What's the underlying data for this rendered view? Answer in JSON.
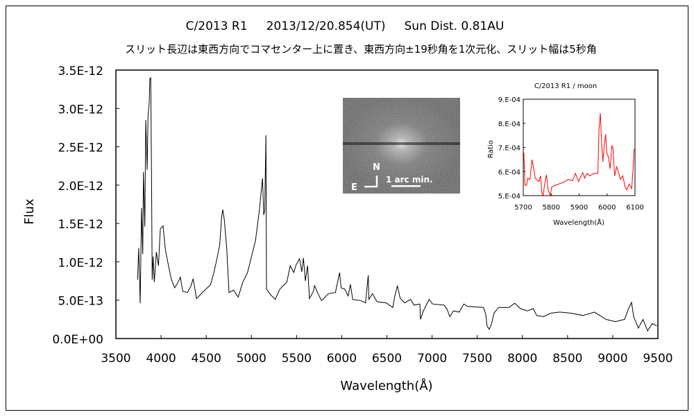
{
  "chart_data": [
    {
      "type": "line",
      "title": "C/2013 R1     2013/12/20.854(UT)     Sun Dist. 0.81AU",
      "subtitle": "スリット長辺は東西方向でコマセンター上に置き、東西方向±19秒角を1次元化、スリット幅は5秒角",
      "xlabel": "Wavelength(Å)",
      "ylabel": "Flux",
      "xlim": [
        3500,
        9500
      ],
      "ylim": [
        0,
        3.5e-12
      ],
      "x_ticks": [
        "3500",
        "4000",
        "4500",
        "5000",
        "5500",
        "6000",
        "6500",
        "7000",
        "7500",
        "8000",
        "8500",
        "9000",
        "9500"
      ],
      "y_ticks": [
        "0.0E+00",
        "5.0E-13",
        "1.0E-12",
        "1.5E-12",
        "2.0E-12",
        "2.5E-12",
        "3.0E-12",
        "3.5E-12"
      ],
      "grid": false,
      "series": [
        {
          "name": "C/2013 R1 spectrum",
          "color": "#000000",
          "y_unit_scale": 1e-13,
          "points": [
            [
              3740,
              7.66
            ],
            [
              3753,
              11.8
            ],
            [
              3769,
              4.6
            ],
            [
              3784,
              17
            ],
            [
              3797,
              11
            ],
            [
              3805,
              21.7
            ],
            [
              3820,
              14.6
            ],
            [
              3830,
              28.5
            ],
            [
              3846,
              22
            ],
            [
              3856,
              29
            ],
            [
              3869,
              30.7
            ],
            [
              3876,
              33.9
            ],
            [
              3886,
              34
            ],
            [
              3894,
              21.8
            ],
            [
              3902,
              7.7
            ],
            [
              3912,
              10.7
            ],
            [
              3925,
              7.35
            ],
            [
              3948,
              11.3
            ],
            [
              3971,
              9.5
            ],
            [
              3992,
              14.3
            ],
            [
              4022,
              14.7
            ],
            [
              4048,
              11.6
            ],
            [
              4074,
              10
            ],
            [
              4112,
              7.8
            ],
            [
              4150,
              6.6
            ],
            [
              4189,
              7.35
            ],
            [
              4214,
              8
            ],
            [
              4240,
              6.15
            ],
            [
              4291,
              6
            ],
            [
              4329,
              6.8
            ],
            [
              4355,
              7.8
            ],
            [
              4393,
              5.2
            ],
            [
              4470,
              6.15
            ],
            [
              4547,
              7
            ],
            [
              4585,
              8.6
            ],
            [
              4624,
              10.7
            ],
            [
              4649,
              12.2
            ],
            [
              4670,
              15.8
            ],
            [
              4683,
              16.8
            ],
            [
              4700,
              15.5
            ],
            [
              4726,
              11.9
            ],
            [
              4752,
              6
            ],
            [
              4803,
              6.3
            ],
            [
              4854,
              5.4
            ],
            [
              4905,
              7.35
            ],
            [
              4957,
              8.6
            ],
            [
              5008,
              11
            ],
            [
              5046,
              12.8
            ],
            [
              5085,
              16.4
            ],
            [
              5123,
              20.9
            ],
            [
              5136,
              16.1
            ],
            [
              5148,
              16.7
            ],
            [
              5156,
              23.3
            ],
            [
              5161,
              26.5
            ],
            [
              5167,
              6.45
            ],
            [
              5213,
              5.7
            ],
            [
              5264,
              5.1
            ],
            [
              5315,
              6.45
            ],
            [
              5392,
              7.35
            ],
            [
              5430,
              9.5
            ],
            [
              5469,
              8.6
            ],
            [
              5494,
              9.6
            ],
            [
              5533,
              10.4
            ],
            [
              5558,
              8.7
            ],
            [
              5576,
              10.5
            ],
            [
              5597,
              7.5
            ],
            [
              5622,
              9.5
            ],
            [
              5643,
              5.2
            ],
            [
              5686,
              6.15
            ],
            [
              5699,
              6.9
            ],
            [
              5737,
              5.85
            ],
            [
              5776,
              4.95
            ],
            [
              5853,
              5.85
            ],
            [
              5930,
              6
            ],
            [
              5976,
              8.6
            ],
            [
              5994,
              6.6
            ],
            [
              6033,
              6.45
            ],
            [
              6071,
              5.55
            ],
            [
              6096,
              7.05
            ],
            [
              6121,
              5.1
            ],
            [
              6211,
              4.95
            ],
            [
              6263,
              4.65
            ],
            [
              6293,
              8.25
            ],
            [
              6301,
              5.1
            ],
            [
              6340,
              5.85
            ],
            [
              6390,
              4.8
            ],
            [
              6493,
              4.65
            ],
            [
              6565,
              4.05
            ],
            [
              6583,
              5.25
            ],
            [
              6616,
              6.9
            ],
            [
              6647,
              5.25
            ],
            [
              6698,
              4.65
            ],
            [
              6762,
              5.1
            ],
            [
              6801,
              4.35
            ],
            [
              6865,
              4.5
            ],
            [
              6872,
              2.5
            ],
            [
              6903,
              3.6
            ],
            [
              6967,
              5.1
            ],
            [
              7005,
              4.5
            ],
            [
              7133,
              4.35
            ],
            [
              7164,
              3.9
            ],
            [
              7197,
              2.85
            ],
            [
              7236,
              3.6
            ],
            [
              7300,
              3.45
            ],
            [
              7351,
              4.5
            ],
            [
              7390,
              4.2
            ],
            [
              7569,
              4.05
            ],
            [
              7595,
              3.15
            ],
            [
              7608,
              1.65
            ],
            [
              7633,
              1.2
            ],
            [
              7659,
              1.95
            ],
            [
              7685,
              3.3
            ],
            [
              7736,
              4.05
            ],
            [
              7851,
              4.05
            ],
            [
              7915,
              4.6
            ],
            [
              7979,
              3.9
            ],
            [
              8056,
              3.6
            ],
            [
              8120,
              3.9
            ],
            [
              8158,
              3
            ],
            [
              8235,
              2.85
            ],
            [
              8312,
              3.3
            ],
            [
              8414,
              3.45
            ],
            [
              8542,
              3.3
            ],
            [
              8670,
              3
            ],
            [
              8798,
              3.45
            ],
            [
              8926,
              2.5
            ],
            [
              9029,
              2.2
            ],
            [
              9131,
              2.5
            ],
            [
              9170,
              3.75
            ],
            [
              9208,
              4.7
            ],
            [
              9232,
              2.85
            ],
            [
              9283,
              1.35
            ],
            [
              9334,
              2.5
            ],
            [
              9386,
              1.0
            ],
            [
              9437,
              1.95
            ],
            [
              9488,
              1.65
            ]
          ]
        }
      ]
    },
    {
      "type": "line",
      "title": "C/2013 R1 / moon",
      "xlabel": "Wavelength(Å)",
      "ylabel": "Ratio",
      "xlim": [
        5700,
        6100
      ],
      "ylim": [
        0.0005,
        0.0009
      ],
      "x_ticks": [
        "5700",
        "5800",
        "5900",
        "6000",
        "6100"
      ],
      "y_ticks": [
        "5.E-04",
        "6.E-04",
        "7.E-04",
        "8.E-04",
        "9.E-04"
      ],
      "series": [
        {
          "name": "ratio",
          "color": "#ff0000",
          "y_unit_scale": 0.0001,
          "points": [
            [
              5702,
              6.78
            ],
            [
              5706,
              5.43
            ],
            [
              5712,
              5.43
            ],
            [
              5716,
              5.72
            ],
            [
              5724,
              5.67
            ],
            [
              5731,
              6.49
            ],
            [
              5735,
              6.25
            ],
            [
              5743,
              5.72
            ],
            [
              5756,
              5.58
            ],
            [
              5762,
              5.82
            ],
            [
              5766,
              5.14
            ],
            [
              5771,
              5
            ],
            [
              5776,
              5.43
            ],
            [
              5783,
              5.87
            ],
            [
              5789,
              5.24
            ],
            [
              5797,
              5
            ],
            [
              5801,
              5.34
            ],
            [
              5814,
              5.43
            ],
            [
              5839,
              5.53
            ],
            [
              5863,
              5.67
            ],
            [
              5876,
              5.62
            ],
            [
              5887,
              5.92
            ],
            [
              5898,
              5.58
            ],
            [
              5913,
              5.96
            ],
            [
              5920,
              5.72
            ],
            [
              5928,
              5.92
            ],
            [
              5938,
              5.82
            ],
            [
              5955,
              5.92
            ],
            [
              5967,
              5.92
            ],
            [
              5971,
              7.75
            ],
            [
              5976,
              8.42
            ],
            [
              5980,
              7.27
            ],
            [
              5985,
              6.4
            ],
            [
              5990,
              7.08
            ],
            [
              5995,
              7.55
            ],
            [
              5999,
              6.78
            ],
            [
              6005,
              6.59
            ],
            [
              6011,
              6.11
            ],
            [
              6017,
              7.08
            ],
            [
              6021,
              6.98
            ],
            [
              6027,
              5.82
            ],
            [
              6034,
              6.2
            ],
            [
              6042,
              5.92
            ],
            [
              6048,
              5.67
            ],
            [
              6056,
              5.82
            ],
            [
              6065,
              5.34
            ],
            [
              6071,
              5.24
            ],
            [
              6079,
              5.48
            ],
            [
              6088,
              5.29
            ],
            [
              6093,
              6.11
            ],
            [
              6096,
              6.88
            ],
            [
              6100,
              6.98
            ]
          ]
        }
      ]
    }
  ],
  "image_inset": {
    "north_label": "N",
    "east_label": "E",
    "scale_label": "1 arc min."
  }
}
